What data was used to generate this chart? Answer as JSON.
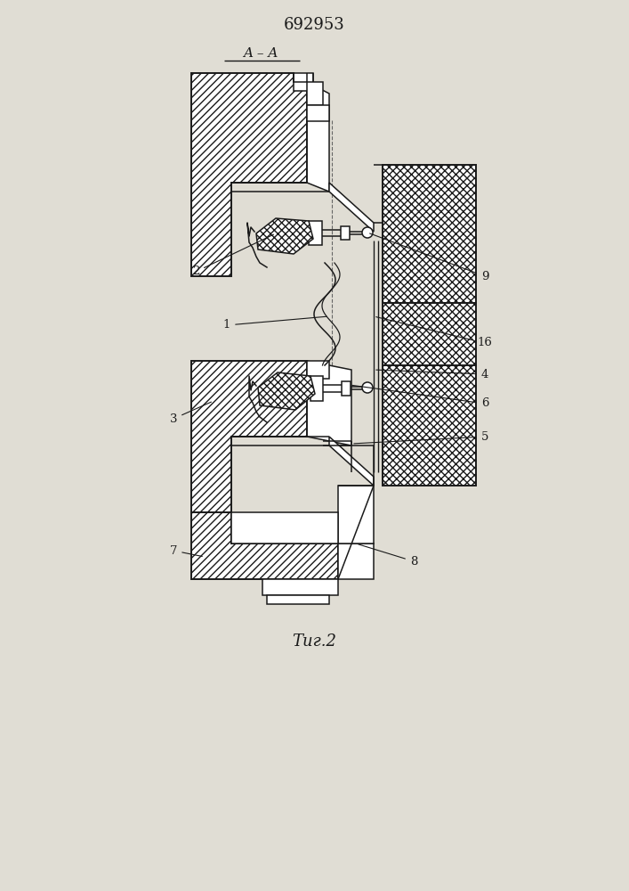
{
  "title": "692953",
  "section_label": "A – A",
  "fig_label": "Τиг.2",
  "bg_color": "#e0ddd4",
  "line_color": "#1a1a1a",
  "figsize": [
    7.07,
    10.0
  ],
  "dpi": 100
}
